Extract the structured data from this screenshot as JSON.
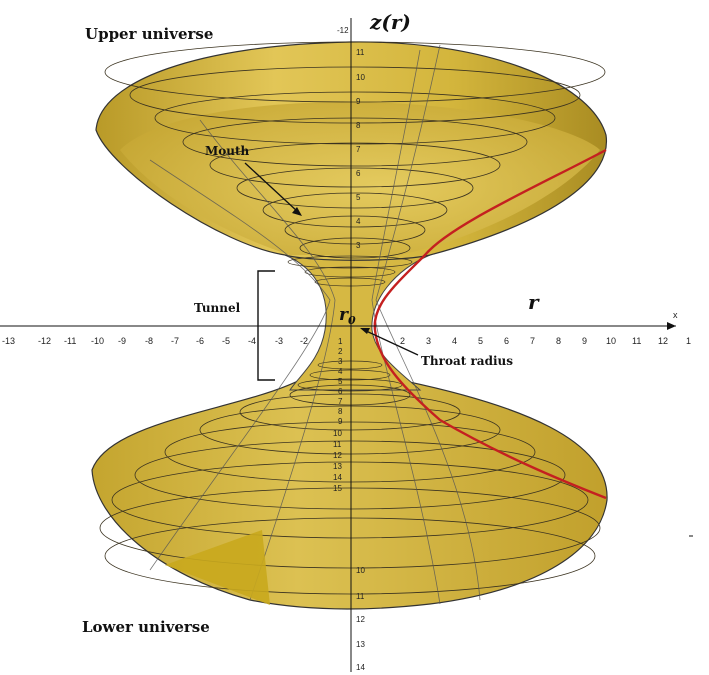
{
  "labels": {
    "upper_universe": "Upper universe",
    "lower_universe": "Lower universe",
    "mouth": "Mouth",
    "tunnel": "Tunnel",
    "throat_radius": "Throat radius",
    "r0": "r",
    "r0_sub": "0"
  },
  "axes": {
    "z_label": "z(r)",
    "r_label": "r",
    "x_name": "x",
    "x_ticks": [
      "-13",
      "-12",
      "-11",
      "-10",
      "-9",
      "-8",
      "-7",
      "-6",
      "-5",
      "-4",
      "-3",
      "-2",
      "2",
      "3",
      "4",
      "5",
      "6",
      "7",
      "8",
      "9",
      "10",
      "11",
      "12",
      "1"
    ],
    "z_ticks_top": [
      "-12",
      "11",
      "10",
      "9",
      "8",
      "7",
      "6",
      "5",
      "4",
      "3"
    ],
    "z_ticks_mid": [
      "1",
      "2",
      "3",
      "4",
      "5",
      "6",
      "7",
      "8",
      "9",
      "10",
      "11",
      "12",
      "13",
      "14",
      "15"
    ],
    "z_ticks_bottom": [
      "10",
      "11",
      "12",
      "13",
      "14"
    ]
  },
  "colors": {
    "surface_fill": "#d7b83a",
    "surface_dark": "#b8982a",
    "rim": "#333333",
    "meridian": "#c42020",
    "axis": "#111111"
  }
}
